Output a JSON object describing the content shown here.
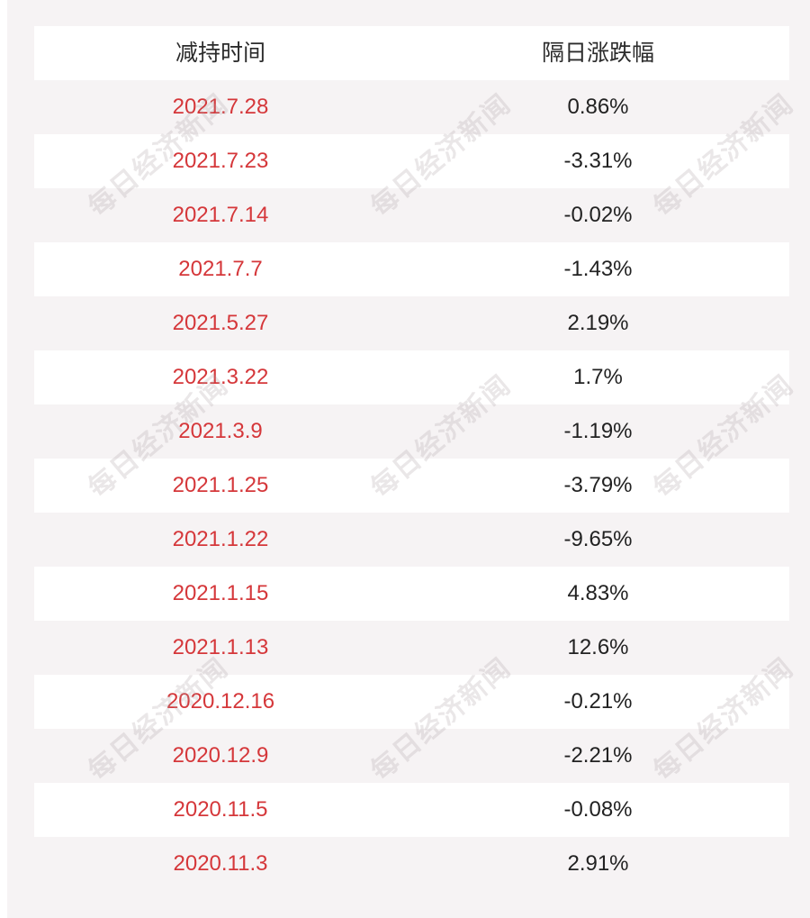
{
  "header": {
    "col1": "减持时间",
    "col2": "隔日涨跌幅"
  },
  "rows": [
    {
      "date": "2021.7.28",
      "change": "0.86%"
    },
    {
      "date": "2021.7.23",
      "change": "-3.31%"
    },
    {
      "date": "2021.7.14",
      "change": "-0.02%"
    },
    {
      "date": "2021.7.7",
      "change": "-1.43%"
    },
    {
      "date": "2021.5.27",
      "change": "2.19%"
    },
    {
      "date": "2021.3.22",
      "change": "1.7%"
    },
    {
      "date": "2021.3.9",
      "change": "-1.19%"
    },
    {
      "date": "2021.1.25",
      "change": "-3.79%"
    },
    {
      "date": "2021.1.22",
      "change": "-9.65%"
    },
    {
      "date": "2021.1.15",
      "change": "4.83%"
    },
    {
      "date": "2021.1.13",
      "change": "12.6%"
    },
    {
      "date": "2020.12.16",
      "change": "-0.21%"
    },
    {
      "date": "2020.12.9",
      "change": "-2.21%"
    },
    {
      "date": "2020.11.5",
      "change": "-0.08%"
    },
    {
      "date": "2020.11.3",
      "change": "2.91%"
    }
  ],
  "watermark": "每日经济新闻",
  "colors": {
    "date": "#d5373a",
    "panel": "#f6f3f4"
  }
}
